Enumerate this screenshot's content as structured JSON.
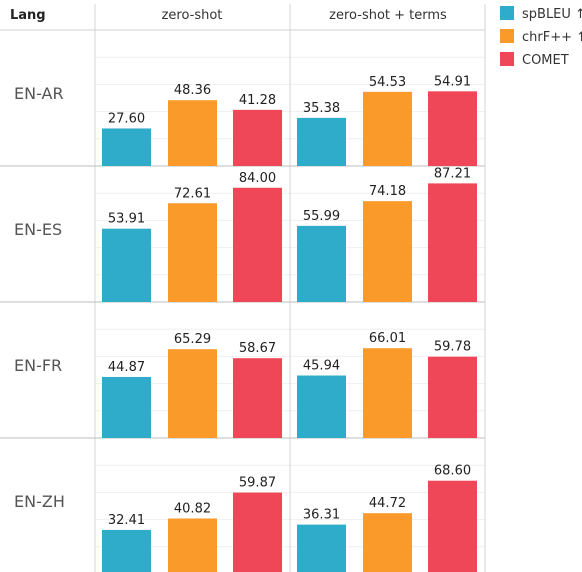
{
  "chart_data": {
    "type": "bar",
    "row_header": "Lang",
    "columns": [
      "zero-shot",
      "zero-shot + terms"
    ],
    "rows": [
      "EN-AR",
      "EN-ES",
      "EN-FR",
      "EN-ZH"
    ],
    "series": [
      {
        "name": "spBLEU ↑",
        "color": "#2eacc9",
        "values": [
          [
            27.6,
            35.38
          ],
          [
            53.91,
            55.99
          ],
          [
            44.87,
            45.94
          ],
          [
            32.41,
            36.31
          ]
        ]
      },
      {
        "name": "chrF++ ↑",
        "color": "#f99a2b",
        "values": [
          [
            48.36,
            54.53
          ],
          [
            72.61,
            74.18
          ],
          [
            65.29,
            66.01
          ],
          [
            40.82,
            44.72
          ]
        ]
      },
      {
        "name": "COMET",
        "color": "#ef4658",
        "values": [
          [
            41.28,
            54.91
          ],
          [
            84.0,
            87.21
          ],
          [
            58.67,
            59.78
          ],
          [
            59.87,
            68.6
          ]
        ]
      }
    ],
    "ylim": [
      0,
      100
    ],
    "grid": true,
    "legend": "top-right"
  }
}
